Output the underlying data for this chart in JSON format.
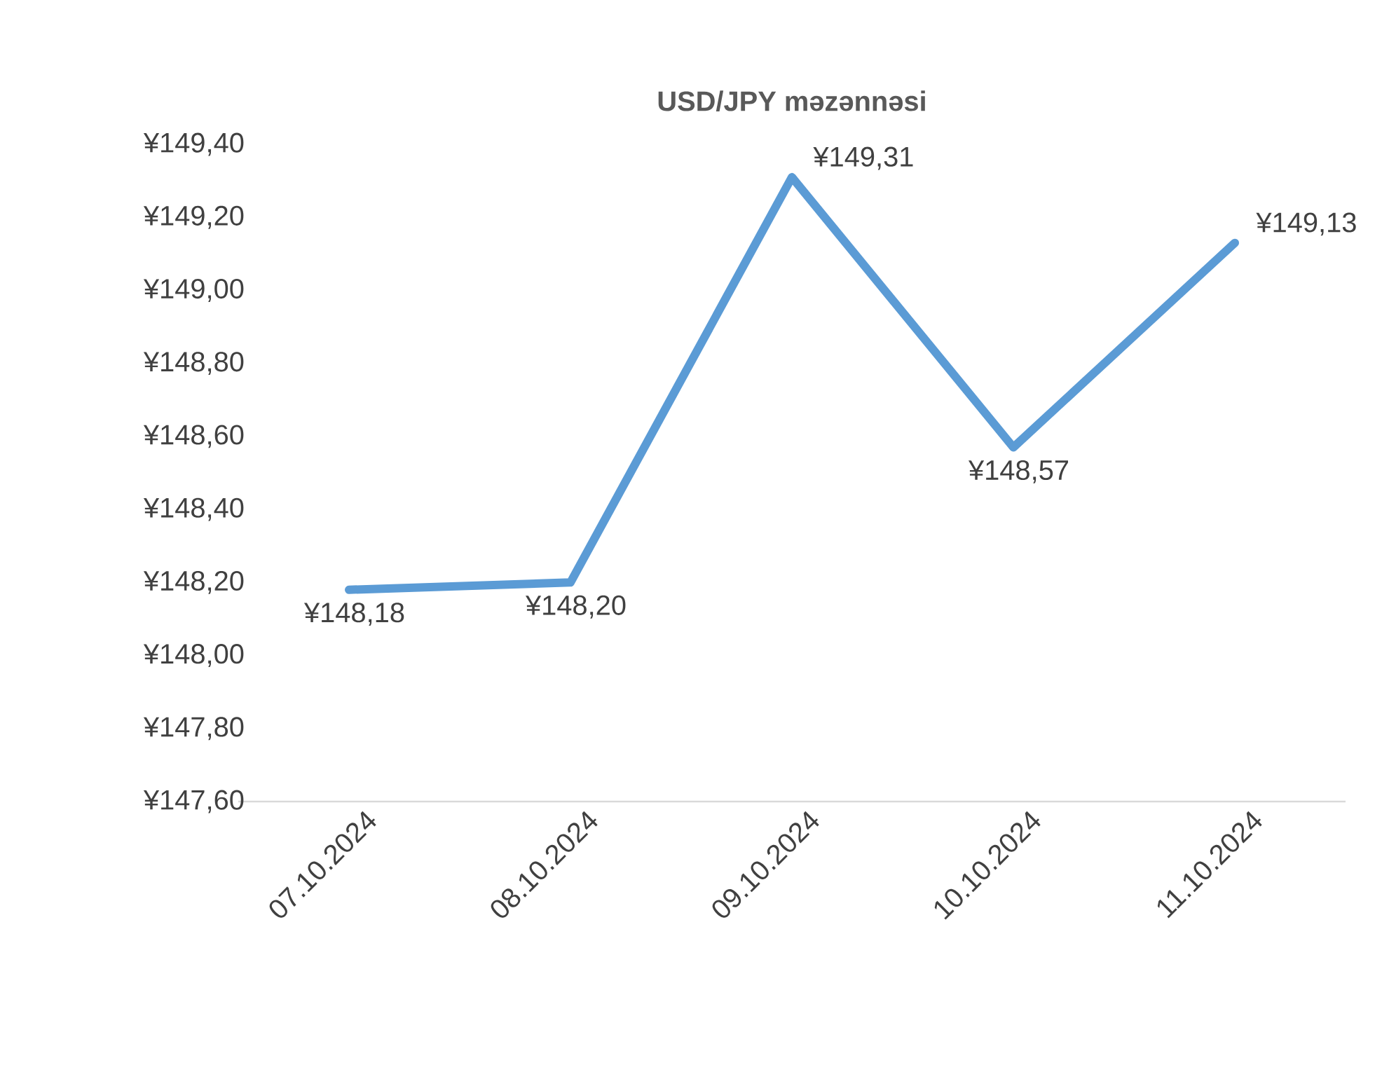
{
  "chart_data": {
    "type": "line",
    "title": "USD/JPY məzənnəsi",
    "categories": [
      "07.10.2024",
      "08.10.2024",
      "09.10.2024",
      "10.10.2024",
      "11.10.2024"
    ],
    "series": [
      {
        "color": "#5b9bd5",
        "values": [
          148.18,
          148.2,
          149.31,
          148.57,
          149.13
        ],
        "value_labels": [
          "¥148,18",
          "¥148,20",
          "¥149,31",
          "¥148,57",
          "¥149,13"
        ]
      }
    ],
    "ylim": [
      147.6,
      149.4
    ],
    "yticks": [
      {
        "value": 147.6,
        "label": "¥147,60"
      },
      {
        "value": 147.8,
        "label": "¥147,80"
      },
      {
        "value": 148.0,
        "label": "¥148,00"
      },
      {
        "value": 148.2,
        "label": "¥148,20"
      },
      {
        "value": 148.4,
        "label": "¥148,40"
      },
      {
        "value": 148.6,
        "label": "¥148,60"
      },
      {
        "value": 148.8,
        "label": "¥148,80"
      },
      {
        "value": 149.0,
        "label": "¥149,00"
      },
      {
        "value": 149.2,
        "label": "¥149,20"
      },
      {
        "value": 149.4,
        "label": "¥149,40"
      }
    ],
    "grid": false,
    "marker": "none",
    "line_style": "solid"
  }
}
